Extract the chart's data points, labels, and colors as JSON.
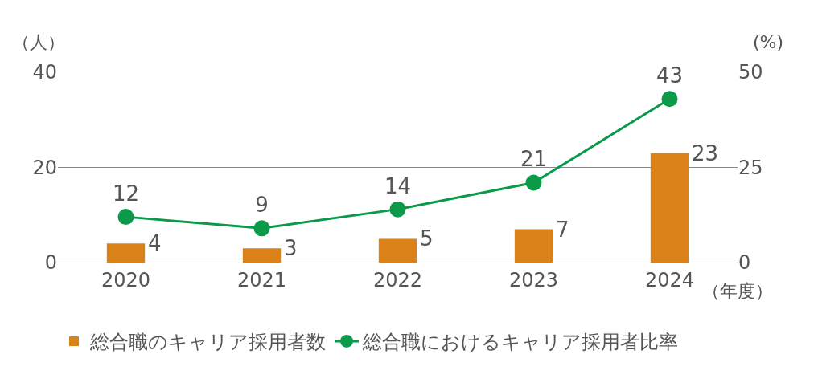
{
  "chart_data": {
    "type": "bar",
    "categories": [
      "2020",
      "2021",
      "2022",
      "2023",
      "2024"
    ],
    "series": [
      {
        "name": "総合職のキャリア採用者数",
        "color": "#d9821a",
        "values": [
          4,
          3,
          5,
          7,
          23
        ]
      },
      {
        "name": "総合職におけるキャリア採用者比率",
        "type": "line",
        "axis": "y2",
        "color": "#0a9a4a",
        "values": [
          12,
          9,
          14,
          21,
          43
        ]
      }
    ],
    "ylabel": "（人）",
    "y2label": "(%)",
    "xlabel": "（年度）",
    "ylim": [
      0,
      40
    ],
    "yticks": [
      0,
      20,
      40
    ],
    "y2lim": [
      0,
      50
    ],
    "y2ticks": [
      0,
      25,
      50
    ],
    "grid": "y",
    "legend": "bottom",
    "marker": "circle",
    "line_style": "solid",
    "data_labels": true
  }
}
